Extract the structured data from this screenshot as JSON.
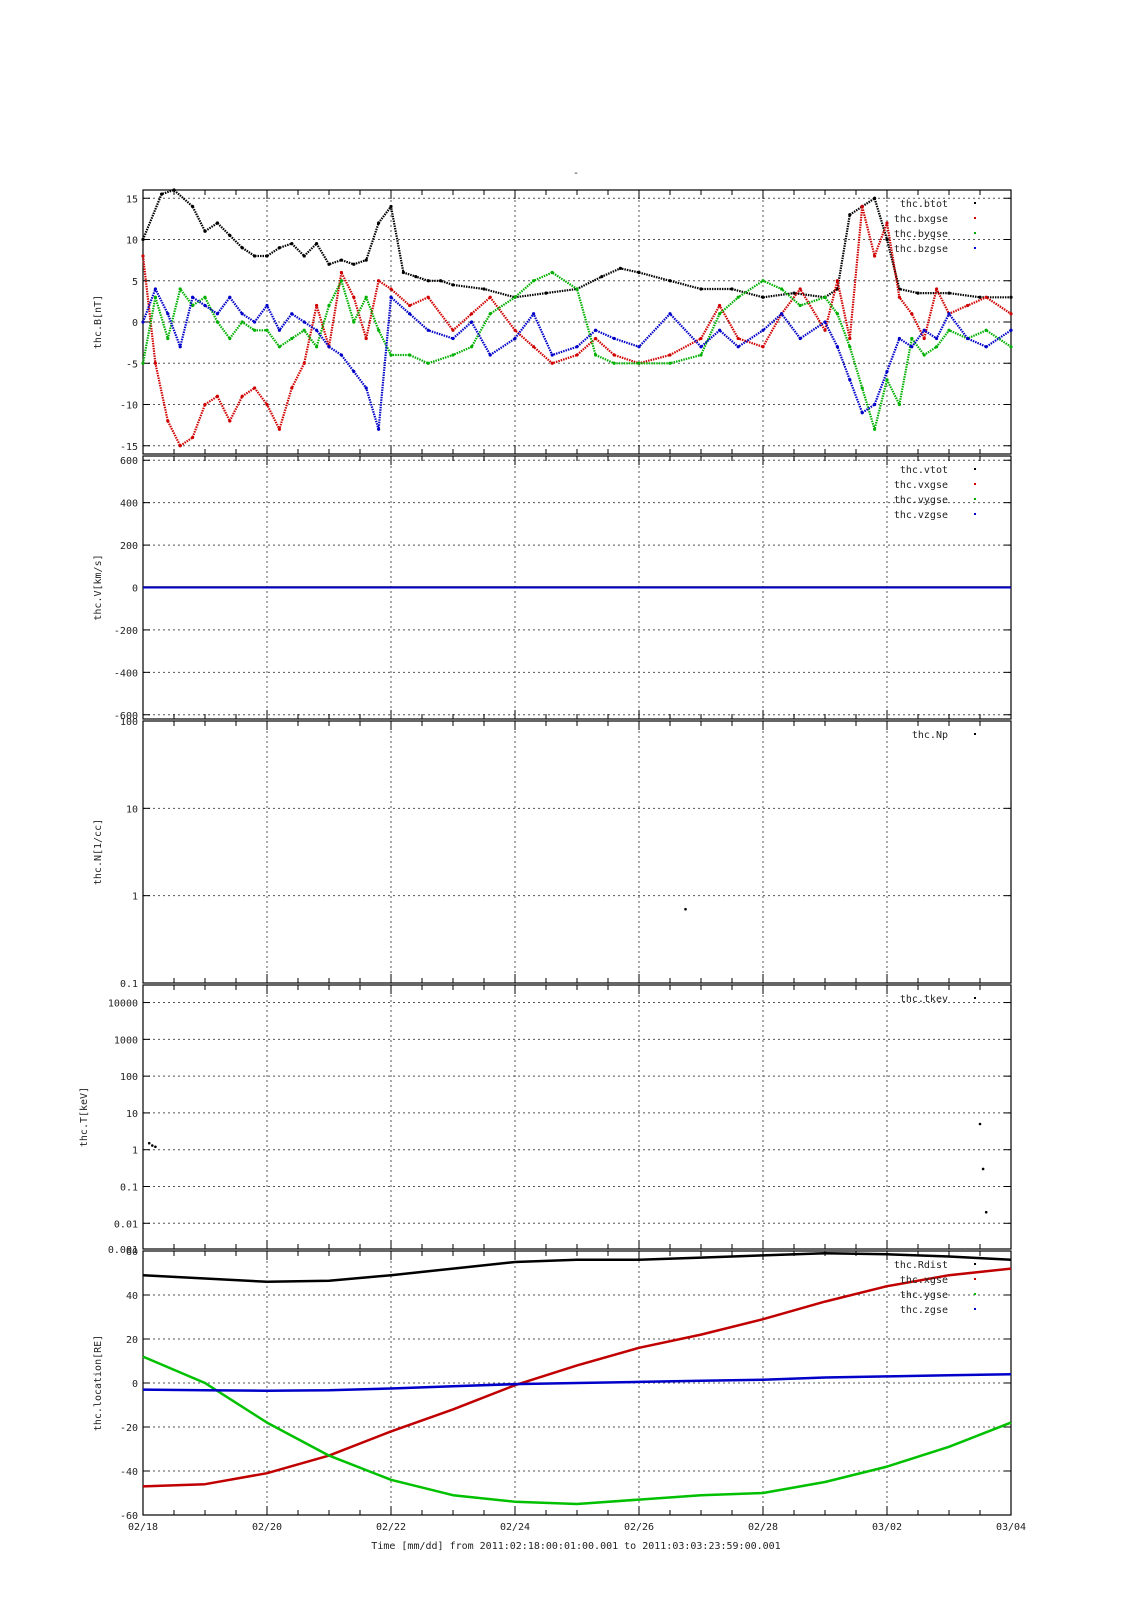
{
  "figure": {
    "title_mark": "-",
    "xlabel": "Time [mm/dd]  from 2011:02:18:00:01:00.001  to  2011:03:03:23:59:00.001"
  },
  "chart_data": [
    {
      "type": "scatter",
      "ylabel": "thc.B[nT]",
      "ylim": [
        -16,
        16
      ],
      "scale": "linear",
      "grid": true,
      "legend_position": "top-right",
      "xlim_days": [
        0,
        14
      ],
      "x_tick_labels": [
        "02/18",
        "02/20",
        "02/22",
        "02/24",
        "02/26",
        "02/28",
        "03/02",
        "03/04"
      ],
      "y_ticks": [
        -15,
        -10,
        -5,
        0,
        5,
        10,
        15
      ],
      "y_tick_labels": [
        "-15",
        "-10",
        "-5",
        "0",
        "5",
        "10",
        "15"
      ],
      "series": [
        {
          "name": "thc.btot",
          "color": "#000000",
          "x": [
            0,
            0.3,
            0.5,
            0.8,
            1,
            1.2,
            1.4,
            1.6,
            1.8,
            2,
            2.2,
            2.4,
            2.6,
            2.8,
            3,
            3.2,
            3.4,
            3.6,
            3.8,
            4,
            4.2,
            4.4,
            4.6,
            4.8,
            5,
            5.5,
            6,
            6.5,
            7,
            7.4,
            7.7,
            8,
            8.5,
            9,
            9.5,
            10,
            10.5,
            11,
            11.2,
            11.4,
            11.6,
            11.8,
            12,
            12.2,
            12.5,
            13,
            13.5,
            14
          ],
          "y": [
            10,
            15.5,
            16,
            14,
            11,
            12,
            10.5,
            9,
            8,
            8,
            9,
            9.5,
            8,
            9.5,
            7,
            7.5,
            7,
            7.5,
            12,
            14,
            6,
            5.5,
            5,
            5,
            4.5,
            4,
            3,
            3.5,
            4,
            5.5,
            6.5,
            6,
            5,
            4,
            4,
            3,
            3.5,
            3,
            4,
            13,
            14,
            15,
            10,
            4,
            3.5,
            3.5,
            3,
            3
          ]
        },
        {
          "name": "thc.bxgse",
          "color": "#d00000",
          "x": [
            0,
            0.2,
            0.4,
            0.6,
            0.8,
            1,
            1.2,
            1.4,
            1.6,
            1.8,
            2,
            2.2,
            2.4,
            2.6,
            2.8,
            3,
            3.2,
            3.4,
            3.6,
            3.8,
            4,
            4.3,
            4.6,
            5,
            5.3,
            5.6,
            6,
            6.3,
            6.6,
            7,
            7.3,
            7.6,
            8,
            8.5,
            9,
            9.3,
            9.6,
            10,
            10.3,
            10.6,
            11,
            11.2,
            11.4,
            11.6,
            11.8,
            12,
            12.2,
            12.4,
            12.6,
            12.8,
            13,
            13.3,
            13.6,
            14
          ],
          "y": [
            8,
            -5,
            -12,
            -15,
            -14,
            -10,
            -9,
            -12,
            -9,
            -8,
            -10,
            -13,
            -8,
            -5,
            2,
            -3,
            6,
            3,
            -2,
            5,
            4,
            2,
            3,
            -1,
            1,
            3,
            -1,
            -3,
            -5,
            -4,
            -2,
            -4,
            -5,
            -4,
            -2,
            2,
            -2,
            -3,
            1,
            4,
            -1,
            5,
            -2,
            14,
            8,
            12,
            3,
            1,
            -2,
            4,
            1,
            2,
            3,
            1
          ]
        },
        {
          "name": "thc.bygse",
          "color": "#00b000",
          "x": [
            0,
            0.2,
            0.4,
            0.6,
            0.8,
            1,
            1.2,
            1.4,
            1.6,
            1.8,
            2,
            2.2,
            2.4,
            2.6,
            2.8,
            3,
            3.2,
            3.4,
            3.6,
            3.8,
            4,
            4.3,
            4.6,
            5,
            5.3,
            5.6,
            6,
            6.3,
            6.6,
            7,
            7.3,
            7.6,
            8,
            8.5,
            9,
            9.3,
            9.6,
            10,
            10.3,
            10.6,
            11,
            11.2,
            11.4,
            11.6,
            11.8,
            12,
            12.2,
            12.4,
            12.6,
            12.8,
            13,
            13.3,
            13.6,
            14
          ],
          "y": [
            -5,
            3,
            -2,
            4,
            2,
            3,
            0,
            -2,
            0,
            -1,
            -1,
            -3,
            -2,
            -1,
            -3,
            2,
            5,
            0,
            3,
            -1,
            -4,
            -4,
            -5,
            -4,
            -3,
            1,
            3,
            5,
            6,
            4,
            -4,
            -5,
            -5,
            -5,
            -4,
            1,
            3,
            5,
            4,
            2,
            3,
            1,
            -3,
            -8,
            -13,
            -7,
            -10,
            -2,
            -4,
            -3,
            -1,
            -2,
            -1,
            -3
          ]
        },
        {
          "name": "thc.bzgse",
          "color": "#0000c8",
          "x": [
            0,
            0.2,
            0.4,
            0.6,
            0.8,
            1,
            1.2,
            1.4,
            1.6,
            1.8,
            2,
            2.2,
            2.4,
            2.6,
            2.8,
            3,
            3.2,
            3.4,
            3.6,
            3.8,
            4,
            4.3,
            4.6,
            5,
            5.3,
            5.6,
            6,
            6.3,
            6.6,
            7,
            7.3,
            7.6,
            8,
            8.5,
            9,
            9.3,
            9.6,
            10,
            10.3,
            10.6,
            11,
            11.2,
            11.4,
            11.6,
            11.8,
            12,
            12.2,
            12.4,
            12.6,
            12.8,
            13,
            13.3,
            13.6,
            14
          ],
          "y": [
            0,
            4,
            1,
            -3,
            3,
            2,
            1,
            3,
            1,
            0,
            2,
            -1,
            1,
            0,
            -1,
            -3,
            -4,
            -6,
            -8,
            -13,
            3,
            1,
            -1,
            -2,
            0,
            -4,
            -2,
            1,
            -4,
            -3,
            -1,
            -2,
            -3,
            1,
            -3,
            -1,
            -3,
            -1,
            1,
            -2,
            0,
            -3,
            -7,
            -11,
            -10,
            -6,
            -2,
            -3,
            -1,
            -2,
            1,
            -2,
            -3,
            -1
          ]
        }
      ]
    },
    {
      "type": "scatter",
      "ylabel": "thc.V[km/s]",
      "ylim": [
        -620,
        620
      ],
      "scale": "linear",
      "grid": true,
      "legend_position": "top-right",
      "xlim_days": [
        0,
        14
      ],
      "y_ticks": [
        -600,
        -400,
        -200,
        0,
        200,
        400,
        600
      ],
      "y_tick_labels": [
        "-600",
        "-400",
        "-200",
        "0",
        "200",
        "400",
        "600"
      ],
      "series": [
        {
          "name": "thc.vtot",
          "color": "#000000",
          "x": [
            0,
            14
          ],
          "y": [
            1,
            1
          ]
        },
        {
          "name": "thc.vxgse",
          "color": "#d00000",
          "x": [
            0,
            14
          ],
          "y": [
            0,
            0
          ]
        },
        {
          "name": "thc.vygse",
          "color": "#00b000",
          "x": [
            0,
            14
          ],
          "y": [
            0,
            0
          ]
        },
        {
          "name": "thc.vzgse",
          "color": "#0000c8",
          "x": [
            0,
            14
          ],
          "y": [
            0,
            0
          ]
        }
      ]
    },
    {
      "type": "scatter",
      "ylabel": "thc.N[1/cc]",
      "ylim": [
        0.1,
        100
      ],
      "scale": "log",
      "grid": true,
      "legend_position": "top-right",
      "xlim_days": [
        0,
        14
      ],
      "y_ticks": [
        0.1,
        1,
        10,
        100
      ],
      "y_tick_labels": [
        "0.1",
        "1",
        "10",
        "100"
      ],
      "series": [
        {
          "name": "thc.Np",
          "color": "#000000",
          "x": [
            8.75
          ],
          "y": [
            0.7
          ]
        }
      ]
    },
    {
      "type": "scatter",
      "ylabel": "thc.T[keV]",
      "ylim": [
        0.002,
        30000
      ],
      "scale": "log",
      "grid": true,
      "legend_position": "top-right",
      "xlim_days": [
        0,
        14
      ],
      "y_ticks": [
        0.01,
        0.1,
        1,
        10,
        100,
        1000,
        10000
      ],
      "y_tick_labels": [
        "0.01",
        "0.1",
        "1",
        "10",
        "100",
        "1000",
        "10000"
      ],
      "bottom_tick_label": "0.001",
      "series": [
        {
          "name": "thc.tkev",
          "color": "#000000",
          "x": [
            0.1,
            0.15,
            0.2,
            13.5,
            13.55,
            13.6
          ],
          "y": [
            1.5,
            1.3,
            1.2,
            5,
            0.3,
            0.02
          ]
        }
      ]
    },
    {
      "type": "line",
      "ylabel": "thc.location[RE]",
      "ylim": [
        -60,
        60
      ],
      "scale": "linear",
      "grid": true,
      "legend_position": "top-right",
      "xlim_days": [
        0,
        14
      ],
      "y_ticks": [
        -60,
        -40,
        -20,
        0,
        20,
        40,
        60
      ],
      "y_tick_labels": [
        "-60",
        "-40",
        "-20",
        "0",
        "20",
        "40",
        "60"
      ],
      "series": [
        {
          "name": "thc.Rdist",
          "color": "#000000",
          "x": [
            0,
            1,
            2,
            3,
            4,
            5,
            6,
            7,
            8,
            9,
            10,
            11,
            12,
            13,
            14
          ],
          "y": [
            49,
            47.5,
            46,
            46.5,
            49,
            52,
            55,
            56,
            56,
            57,
            58,
            59,
            58.5,
            57.5,
            56
          ]
        },
        {
          "name": "thc.xgse",
          "color": "#c00000",
          "x": [
            0,
            1,
            2,
            3,
            4,
            5,
            6,
            7,
            8,
            9,
            10,
            11,
            12,
            13,
            14
          ],
          "y": [
            -47,
            -46,
            -41,
            -33,
            -22,
            -12,
            -1,
            8,
            16,
            22,
            29,
            37,
            44,
            49,
            52
          ]
        },
        {
          "name": "thc.ygse",
          "color": "#00c000",
          "x": [
            0,
            1,
            2,
            3,
            4,
            5,
            6,
            7,
            8,
            9,
            10,
            11,
            12,
            13,
            14
          ],
          "y": [
            12,
            0,
            -18,
            -33,
            -44,
            -51,
            -54,
            -55,
            -53,
            -51,
            -50,
            -45,
            -38,
            -29,
            -18
          ]
        },
        {
          "name": "thc.zgse",
          "color": "#0000c8",
          "x": [
            0,
            1,
            2,
            3,
            4,
            5,
            6,
            7,
            8,
            9,
            10,
            11,
            12,
            13,
            14
          ],
          "y": [
            -3,
            -3.3,
            -3.5,
            -3.3,
            -2.5,
            -1.5,
            -0.5,
            0,
            0.5,
            1,
            1.5,
            2.5,
            3,
            3.5,
            4
          ]
        }
      ]
    }
  ]
}
